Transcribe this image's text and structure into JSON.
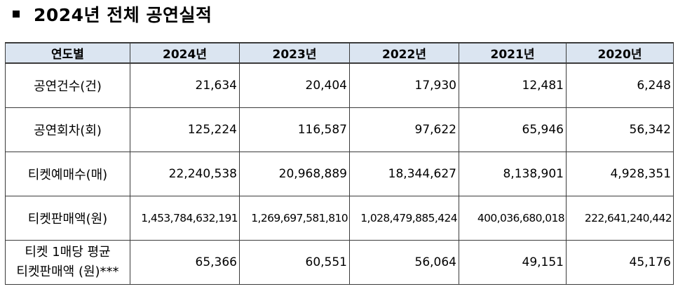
{
  "title": "2024년 전체 공연실적",
  "table": {
    "headers": [
      "연도별",
      "2024년",
      "2023년",
      "2022년",
      "2021년",
      "2020년"
    ],
    "rows": [
      {
        "label": "공연건수(건)",
        "values": [
          "21,634",
          "20,404",
          "17,930",
          "12,481",
          "6,248"
        ]
      },
      {
        "label": "공연회차(회)",
        "values": [
          "125,224",
          "116,587",
          "97,622",
          "65,946",
          "56,342"
        ]
      },
      {
        "label": "티켓예매수(매)",
        "values": [
          "22,240,538",
          "20,968,889",
          "18,344,627",
          "8,138,901",
          "4,928,351"
        ]
      },
      {
        "label": "티켓판매액(원)",
        "values": [
          "1,453,784,632,191",
          "1,269,697,581,810",
          "1,028,479,885,424",
          "400,036,680,018",
          "222,641,240,442"
        ]
      },
      {
        "label_line1": "티켓 1매당 평균",
        "label_line2": "티켓판매액 (원)***",
        "values": [
          "65,366",
          "60,551",
          "56,064",
          "49,151",
          "45,176"
        ]
      }
    ]
  }
}
